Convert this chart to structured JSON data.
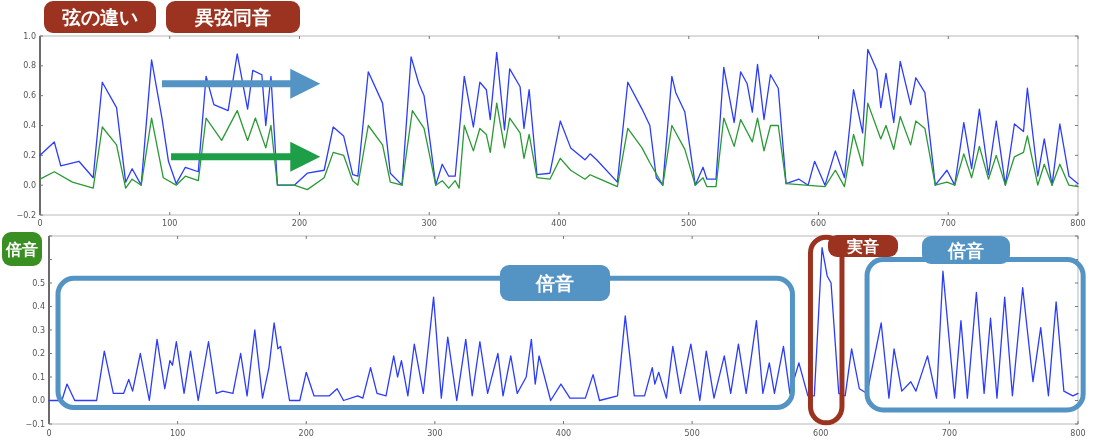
{
  "chart_data": [
    {
      "type": "line",
      "title": "弦の違い",
      "annotations": [
        "異弦同音"
      ],
      "xlim": [
        0,
        800
      ],
      "ylim": [
        -0.2,
        1.0
      ],
      "xticks": [
        0,
        100,
        200,
        300,
        400,
        500,
        600,
        700,
        800
      ],
      "yticks": [
        {
          "value": -0.2,
          "label": "−0.2"
        },
        {
          "value": 0,
          "label": "0.0"
        },
        {
          "value": 0.2,
          "label": "0.2"
        },
        {
          "value": 0.4,
          "label": "0.4"
        },
        {
          "value": 0.6,
          "label": "0.6"
        },
        {
          "value": 0.8,
          "label": "0.8"
        },
        {
          "value": 1.0,
          "label": "1.0"
        }
      ],
      "series": [
        {
          "color": "#2b3cff",
          "x": [
            0,
            11,
            16,
            30,
            41,
            48,
            59,
            66,
            71,
            78,
            86,
            94,
            99,
            105,
            112,
            122,
            128,
            134,
            145,
            152,
            160,
            164,
            171,
            174,
            178,
            183,
            196,
            206,
            219,
            226,
            234,
            241,
            245,
            253,
            264,
            270,
            279,
            286,
            292,
            296,
            305,
            310,
            315,
            320,
            327,
            334,
            339,
            344,
            347,
            352,
            358,
            362,
            370,
            373,
            377,
            383,
            393,
            401,
            409,
            420,
            424,
            429,
            445,
            453,
            464,
            470,
            475,
            480,
            487,
            490,
            497,
            505,
            511,
            514,
            521,
            527,
            535,
            540,
            545,
            549,
            553,
            558,
            563,
            569,
            575,
            585,
            592,
            597,
            605,
            613,
            620,
            627,
            634,
            638,
            645,
            648,
            652,
            658,
            663,
            671,
            675,
            682,
            690,
            699,
            705,
            712,
            718,
            724,
            731,
            737,
            744,
            751,
            758,
            761,
            769,
            774,
            780,
            786,
            793,
            800
          ],
          "values": [
            0.2,
            0.29,
            0.13,
            0.16,
            0.05,
            0.69,
            0.52,
            0.02,
            0.11,
            0.0,
            0.84,
            0.45,
            0.16,
            0.01,
            0.12,
            0.09,
            0.73,
            0.54,
            0.5,
            0.88,
            0.51,
            0.77,
            0.74,
            0.4,
            0.73,
            0.0,
            0.0,
            0.08,
            0.1,
            0.39,
            0.33,
            0.07,
            0.06,
            0.76,
            0.55,
            0.08,
            0.0,
            0.86,
            0.68,
            0.6,
            0.0,
            0.14,
            0.06,
            0.06,
            0.73,
            0.39,
            0.69,
            0.64,
            0.44,
            0.89,
            0.37,
            0.78,
            0.66,
            0.38,
            0.64,
            0.07,
            0.08,
            0.43,
            0.25,
            0.17,
            0.21,
            0.17,
            0.02,
            0.69,
            0.51,
            0.4,
            0.05,
            0.0,
            0.73,
            0.62,
            0.49,
            0.0,
            0.12,
            0.04,
            0.04,
            0.79,
            0.42,
            0.76,
            0.68,
            0.49,
            0.81,
            0.44,
            0.74,
            0.65,
            0.01,
            0.04,
            0.0,
            0.16,
            0.0,
            0.23,
            0.05,
            0.64,
            0.35,
            0.91,
            0.77,
            0.52,
            0.75,
            0.42,
            0.83,
            0.54,
            0.72,
            0.62,
            0.0,
            0.1,
            0.0,
            0.42,
            0.11,
            0.51,
            0.07,
            0.43,
            0.0,
            0.41,
            0.36,
            0.65,
            0.06,
            0.31,
            0.0,
            0.41,
            0.06,
            0.01
          ]
        },
        {
          "color": "#2a9a34",
          "x": [
            0,
            11,
            25,
            41,
            48,
            59,
            66,
            71,
            78,
            86,
            95,
            105,
            112,
            122,
            128,
            140,
            152,
            160,
            166,
            174,
            178,
            183,
            196,
            206,
            219,
            226,
            234,
            241,
            245,
            253,
            264,
            270,
            279,
            287,
            296,
            305,
            310,
            315,
            320,
            323,
            327,
            334,
            339,
            344,
            347,
            352,
            358,
            362,
            370,
            373,
            377,
            383,
            393,
            401,
            409,
            420,
            424,
            429,
            445,
            453,
            464,
            470,
            480,
            487,
            497,
            505,
            511,
            514,
            521,
            527,
            535,
            540,
            549,
            553,
            558,
            563,
            569,
            575,
            590,
            605,
            613,
            620,
            627,
            634,
            638,
            648,
            652,
            658,
            663,
            671,
            675,
            682,
            690,
            699,
            705,
            712,
            718,
            724,
            731,
            737,
            744,
            751,
            758,
            761,
            769,
            774,
            780,
            786,
            793,
            800
          ],
          "values": [
            0.04,
            0.09,
            0.02,
            -0.02,
            0.39,
            0.27,
            -0.02,
            0.04,
            0.0,
            0.45,
            0.05,
            0.0,
            0.06,
            0.03,
            0.45,
            0.3,
            0.5,
            0.3,
            0.45,
            0.25,
            0.4,
            0.0,
            0.0,
            -0.03,
            0.05,
            0.22,
            0.2,
            0.03,
            0.0,
            0.4,
            0.27,
            0.02,
            0.0,
            0.5,
            0.38,
            0.0,
            0.03,
            -0.02,
            0.03,
            -0.02,
            0.4,
            0.23,
            0.38,
            0.34,
            0.22,
            0.55,
            0.25,
            0.45,
            0.35,
            0.18,
            0.34,
            0.05,
            0.04,
            0.18,
            0.1,
            0.04,
            0.07,
            0.05,
            -0.01,
            0.38,
            0.25,
            0.15,
            0.0,
            0.4,
            0.24,
            0.0,
            0.05,
            -0.01,
            -0.01,
            0.45,
            0.26,
            0.44,
            0.29,
            0.45,
            0.23,
            0.4,
            0.4,
            0.01,
            0.0,
            -0.01,
            0.1,
            -0.01,
            0.34,
            0.13,
            0.55,
            0.31,
            0.4,
            0.24,
            0.46,
            0.27,
            0.43,
            0.38,
            0.0,
            0.02,
            0.0,
            0.21,
            0.05,
            0.26,
            0.04,
            0.2,
            0.0,
            0.19,
            0.22,
            0.33,
            0.0,
            0.14,
            0.0,
            0.14,
            0.0,
            -0.01
          ]
        }
      ]
    },
    {
      "type": "line",
      "title": "倍音",
      "annotations": [
        "倍音",
        "実音",
        "倍音"
      ],
      "xlim": [
        0,
        800
      ],
      "ylim": [
        -0.1,
        0.7
      ],
      "xticks": [
        0,
        100,
        200,
        300,
        400,
        500,
        600,
        700,
        800
      ],
      "yticks": [
        {
          "value": -0.1,
          "label": "−0.1"
        },
        {
          "value": 0,
          "label": "0.0"
        },
        {
          "value": 0.1,
          "label": "0.1"
        },
        {
          "value": 0.2,
          "label": "0.2"
        },
        {
          "value": 0.3,
          "label": "0.3"
        },
        {
          "value": 0.4,
          "label": "0.4"
        },
        {
          "value": 0.5,
          "label": "0.5"
        },
        {
          "value": 0.6,
          "label": null
        },
        {
          "value": 0.7,
          "label": null
        }
      ],
      "series": [
        {
          "color": "#2b3cff",
          "x": [
            0,
            10,
            14,
            20,
            37,
            43,
            50,
            58,
            62,
            65,
            71,
            78,
            84,
            90,
            94,
            96,
            99,
            105,
            110,
            116,
            124,
            130,
            135,
            143,
            149,
            154,
            160,
            166,
            171,
            175,
            178,
            180,
            187,
            195,
            200,
            206,
            218,
            224,
            229,
            240,
            244,
            250,
            255,
            262,
            268,
            271,
            274,
            279,
            284,
            291,
            299,
            305,
            310,
            317,
            324,
            329,
            335,
            341,
            349,
            353,
            359,
            364,
            371,
            375,
            378,
            381,
            390,
            398,
            405,
            417,
            423,
            428,
            442,
            448,
            455,
            463,
            469,
            471,
            474,
            480,
            485,
            491,
            499,
            506,
            511,
            517,
            525,
            530,
            536,
            542,
            550,
            555,
            560,
            564,
            571,
            576,
            583,
            590,
            595,
            601,
            605,
            608,
            614,
            619,
            624,
            630,
            636,
            647,
            653,
            657,
            663,
            670,
            674,
            683,
            690,
            695,
            704,
            709,
            714,
            721,
            727,
            732,
            737,
            743,
            749,
            757,
            765,
            771,
            777,
            783,
            789,
            796,
            800
          ],
          "values": [
            0.0,
            0.0,
            0.07,
            0.0,
            0.0,
            0.21,
            0.03,
            0.03,
            0.09,
            0.04,
            0.2,
            0.0,
            0.26,
            0.05,
            0.17,
            0.15,
            0.25,
            0.03,
            0.21,
            0.0,
            0.25,
            0.03,
            0.04,
            0.03,
            0.2,
            0.02,
            0.3,
            0.01,
            0.14,
            0.33,
            0.22,
            0.23,
            0.0,
            0.0,
            0.12,
            0.02,
            0.02,
            0.05,
            0.0,
            0.02,
            0.01,
            0.14,
            0.03,
            0.02,
            0.19,
            0.1,
            0.17,
            0.02,
            0.24,
            0.03,
            0.44,
            0.01,
            0.27,
            0.0,
            0.26,
            0.02,
            0.25,
            0.03,
            0.2,
            0.02,
            0.19,
            0.03,
            0.1,
            0.26,
            0.07,
            0.19,
            0.0,
            0.07,
            0.01,
            0.01,
            0.11,
            0.0,
            0.02,
            0.36,
            0.02,
            0.02,
            0.14,
            0.07,
            0.12,
            0.01,
            0.23,
            0.03,
            0.24,
            0.0,
            0.21,
            0.01,
            0.19,
            0.03,
            0.24,
            0.03,
            0.34,
            0.03,
            0.16,
            0.03,
            0.23,
            0.03,
            0.16,
            0.02,
            0.02,
            0.65,
            0.53,
            0.5,
            0.03,
            0.02,
            0.22,
            0.05,
            0.03,
            0.33,
            0.01,
            0.22,
            0.04,
            0.08,
            0.04,
            0.19,
            0.01,
            0.55,
            0.01,
            0.34,
            0.01,
            0.46,
            0.03,
            0.35,
            0.01,
            0.44,
            0.02,
            0.48,
            0.08,
            0.31,
            0.02,
            0.42,
            0.04,
            0.02,
            0.03
          ]
        }
      ]
    }
  ]
}
